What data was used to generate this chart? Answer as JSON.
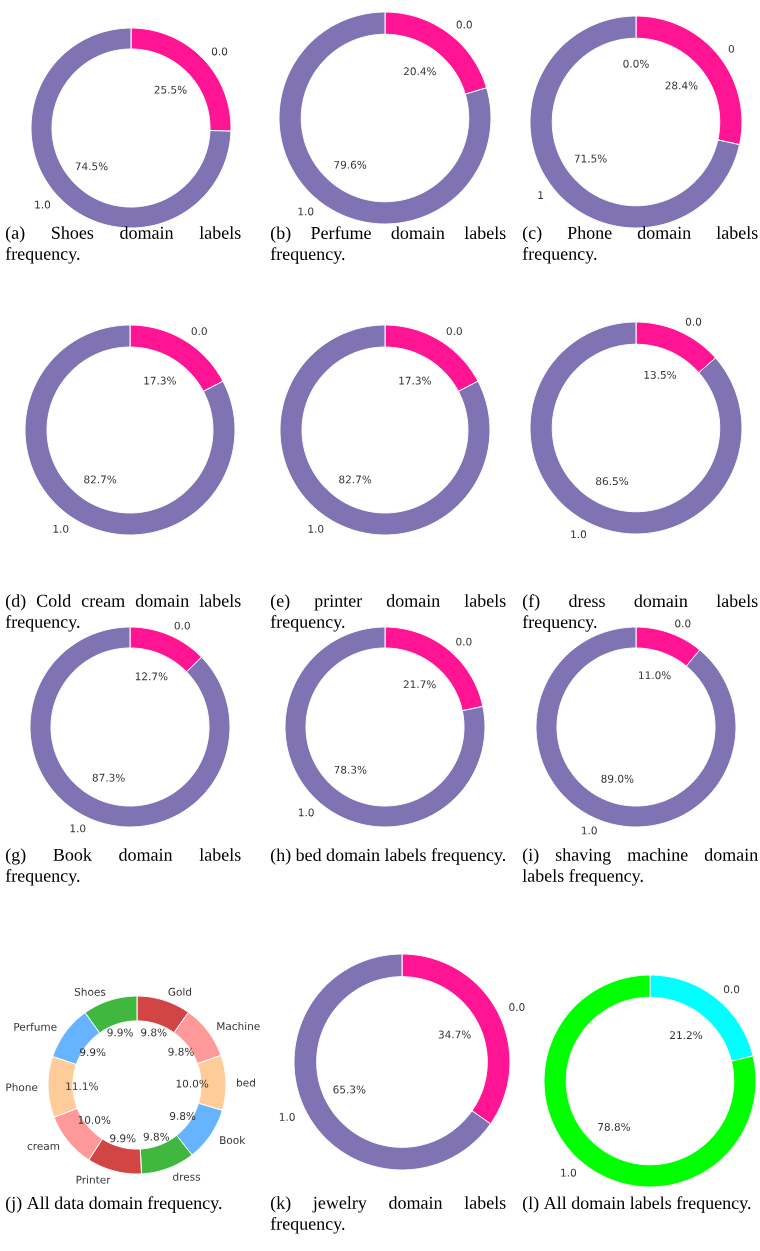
{
  "chart_data": [
    {
      "type": "donut",
      "title": "(a) Shoes domain labels frequency.",
      "categories": [
        "0.0",
        "1.0"
      ],
      "values": [
        25.5,
        74.5
      ],
      "value_labels": [
        "25.5%",
        "74.5%"
      ],
      "colors": [
        "#ff1493",
        "#7f73b3"
      ]
    },
    {
      "type": "donut",
      "title": "(b) Perfume domain labels frequency.",
      "categories": [
        "0.0",
        "1.0"
      ],
      "values": [
        20.4,
        79.6
      ],
      "value_labels": [
        "20.4%",
        "79.6%"
      ],
      "colors": [
        "#ff1493",
        "#7f73b3"
      ]
    },
    {
      "type": "donut",
      "title": "(c) Phone domain labels frequency.",
      "categories": [
        null,
        "0",
        "1"
      ],
      "values": [
        0.0,
        28.4,
        71.5
      ],
      "value_labels": [
        "0.0%",
        "28.4%",
        "71.5%"
      ],
      "colors": [
        "#ff1493",
        "#ff1493",
        "#7f73b3"
      ]
    },
    {
      "type": "donut",
      "title": "(d) Cold cream domain labels frequency.",
      "categories": [
        "0.0",
        "1.0"
      ],
      "values": [
        17.3,
        82.7
      ],
      "value_labels": [
        "17.3%",
        "82.7%"
      ],
      "colors": [
        "#ff1493",
        "#7f73b3"
      ]
    },
    {
      "type": "donut",
      "title": "(e) printer domain labels frequency.",
      "categories": [
        "0.0",
        "1.0"
      ],
      "values": [
        17.3,
        82.7
      ],
      "value_labels": [
        "17.3%",
        "82.7%"
      ],
      "colors": [
        "#ff1493",
        "#7f73b3"
      ]
    },
    {
      "type": "donut",
      "title": "(f) dress domain labels frequency.",
      "categories": [
        "0.0",
        "1.0"
      ],
      "values": [
        13.5,
        86.5
      ],
      "value_labels": [
        "13.5%",
        "86.5%"
      ],
      "colors": [
        "#ff1493",
        "#7f73b3"
      ]
    },
    {
      "type": "donut",
      "title": "(g) Book domain labels frequency.",
      "categories": [
        "0.0",
        "1.0"
      ],
      "values": [
        12.7,
        87.3
      ],
      "value_labels": [
        "12.7%",
        "87.3%"
      ],
      "colors": [
        "#ff1493",
        "#7f73b3"
      ]
    },
    {
      "type": "donut",
      "title": "(h) bed domain labels frequency.",
      "categories": [
        "0.0",
        "1.0"
      ],
      "values": [
        21.7,
        78.3
      ],
      "value_labels": [
        "21.7%",
        "78.3%"
      ],
      "colors": [
        "#ff1493",
        "#7f73b3"
      ]
    },
    {
      "type": "donut",
      "title": "(i) shaving machine domain labels frequency.",
      "categories": [
        "0.0",
        "1.0"
      ],
      "values": [
        11.0,
        89.0
      ],
      "value_labels": [
        "11.0%",
        "89.0%"
      ],
      "colors": [
        "#ff1493",
        "#7f73b3"
      ]
    },
    {
      "type": "donut",
      "title": "(j) All data domain frequency.",
      "categories": [
        "Gold",
        "Machine",
        "bed",
        "Book",
        "dress",
        "Printer",
        "cream",
        "Phone",
        "Perfume",
        "Shoes"
      ],
      "values": [
        9.8,
        9.8,
        10.0,
        9.8,
        9.8,
        9.9,
        10.0,
        11.1,
        9.9,
        9.9
      ],
      "value_labels": [
        "9.8%",
        "9.8%",
        "10.0%",
        "9.8%",
        "9.8%",
        "9.9%",
        "10.0%",
        "11.1%",
        "9.9%",
        "9.9%"
      ],
      "colors": [
        "#d24545",
        "#ff9999",
        "#ffcc99",
        "#66b3ff",
        "#40b840",
        "#d24545",
        "#ff9999",
        "#ffcc99",
        "#66b3ff",
        "#40b840"
      ]
    },
    {
      "type": "donut",
      "title": "(k) jewelry domain labels frequency.",
      "categories": [
        "0.0",
        "1.0"
      ],
      "values": [
        34.7,
        65.3
      ],
      "value_labels": [
        "34.7%",
        "65.3%"
      ],
      "colors": [
        "#ff1493",
        "#7f73b3"
      ]
    },
    {
      "type": "donut",
      "title": "(l) All domain labels frequency.",
      "categories": [
        "0.0",
        "1.0"
      ],
      "values": [
        21.2,
        78.8
      ],
      "value_labels": [
        "21.2%",
        "78.8%"
      ],
      "colors": [
        "#00ffff",
        "#00ff00"
      ]
    }
  ]
}
